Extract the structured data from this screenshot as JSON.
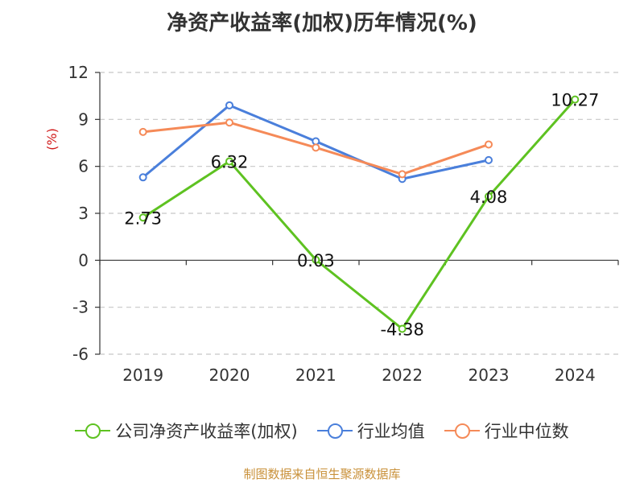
{
  "chart_data": {
    "type": "line",
    "title": "净资产收益率(加权)历年情况(%)",
    "ylabel": "(%)",
    "xlabel": "",
    "categories": [
      "2019",
      "2020",
      "2021",
      "2022",
      "2023",
      "2024"
    ],
    "ylim": [
      -6,
      12
    ],
    "yticks": [
      12,
      9,
      6,
      3,
      0,
      -3,
      -6
    ],
    "grid": true,
    "legend_position": "bottom",
    "series": [
      {
        "name": "公司净资产收益率(加权)",
        "color": "#5ec221",
        "values": [
          2.73,
          6.32,
          0.03,
          -4.38,
          4.08,
          10.27
        ],
        "labels": [
          "2.73",
          "6.32",
          "0.03",
          "-4.38",
          "4.08",
          "10.27"
        ]
      },
      {
        "name": "行业均值",
        "color": "#4a7fdb",
        "values": [
          5.3,
          9.9,
          7.6,
          5.2,
          6.4,
          null
        ]
      },
      {
        "name": "行业中位数",
        "color": "#f58a58",
        "values": [
          8.2,
          8.8,
          7.2,
          5.5,
          7.4,
          null
        ]
      }
    ]
  },
  "source": "制图数据来自恒生聚源数据库"
}
